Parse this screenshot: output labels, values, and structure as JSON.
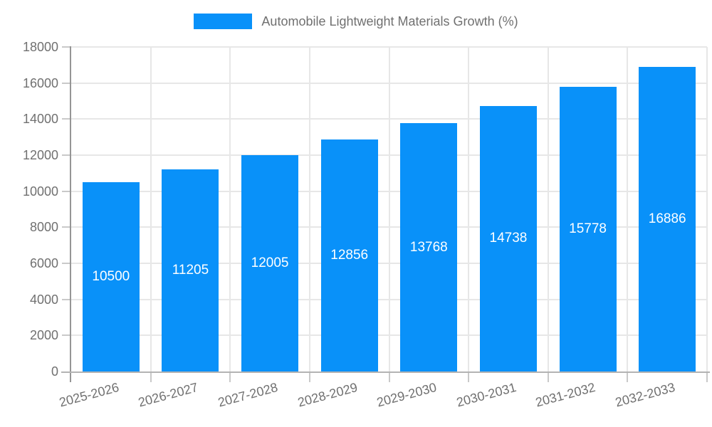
{
  "chart_data": {
    "type": "bar",
    "title": "Automobile Lightweight Materials Growth (%)",
    "categories": [
      "2025-2026",
      "2026-2027",
      "2027-2028",
      "2028-2029",
      "2029-2030",
      "2030-2031",
      "2031-2032",
      "2032-2033"
    ],
    "values": [
      10500,
      11205,
      12005,
      12856,
      13768,
      14738,
      15778,
      16886
    ],
    "xlabel": "",
    "ylabel": "",
    "ylim": [
      0,
      18000
    ],
    "ytick_step": 2000,
    "grid": true,
    "legend_position": "top",
    "bar_value_labels": "inside-center"
  },
  "colors": {
    "bar": "#0991f9",
    "bar_label": "#ffffff",
    "axis_text": "#707070",
    "grid_line": "#e7e7e7",
    "axis_line_y": "#959595",
    "axis_line_x": "#b3b3b3",
    "tick": "#c9c9c9",
    "background": "#ffffff"
  }
}
